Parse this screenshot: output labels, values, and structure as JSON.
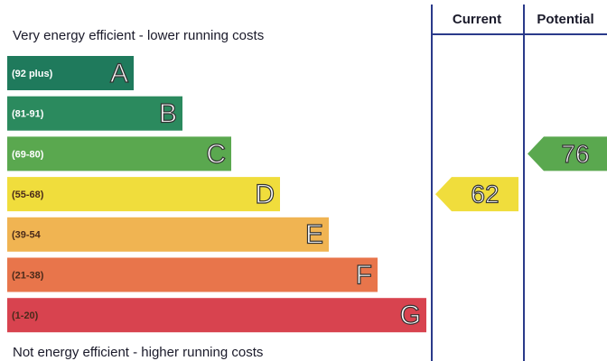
{
  "top_note": "Very energy efficient - lower running costs",
  "bottom_note": "Not energy efficient - higher running costs",
  "bands": [
    {
      "range": "(92 plus)",
      "letter": "A",
      "color": "#1f7a5c"
    },
    {
      "range": "(81-91)",
      "letter": "B",
      "color": "#2b8a5e"
    },
    {
      "range": "(69-80)",
      "letter": "C",
      "color": "#5aa84f"
    },
    {
      "range": "(55-68)",
      "letter": "D",
      "color": "#f0dd3c"
    },
    {
      "range": "(39-54",
      "letter": "E",
      "color": "#f0b452"
    },
    {
      "range": "(21-38)",
      "letter": "F",
      "color": "#e8754b"
    },
    {
      "range": "(1-20)",
      "letter": "G",
      "color": "#d8434f"
    }
  ],
  "current": {
    "label": "Current",
    "value": 62
  },
  "potential": {
    "label": "Potential",
    "value": 76
  }
}
